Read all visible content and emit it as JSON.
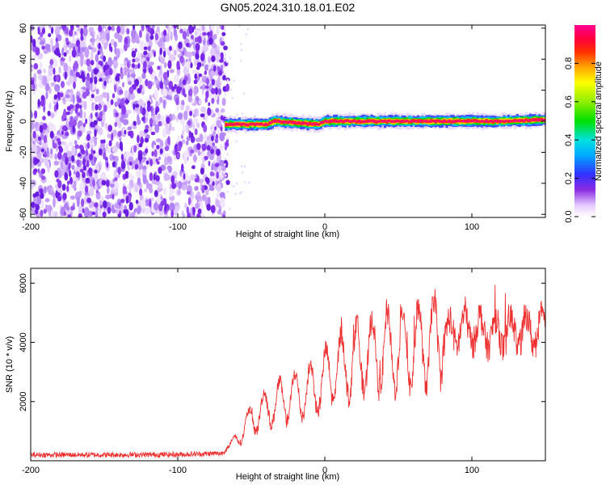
{
  "title": "GN05.2024.310.18.01.E02",
  "colors": {
    "snr_line": "#ee3030",
    "frame": "#000000",
    "speckle": "#7a28ea"
  },
  "chart_data": [
    {
      "type": "heatmap",
      "xlabel": "Height of straight line (km)",
      "ylabel": "Frequency (Hz)",
      "xlim": [
        -200,
        150
      ],
      "ylim": [
        -62,
        62
      ],
      "x_ticks": [
        -200,
        -100,
        0,
        100
      ],
      "x_tick_labels": [
        "-200",
        "-100",
        "0",
        "100"
      ],
      "y_ticks": [
        -60,
        -40,
        -20,
        0,
        20,
        40,
        60
      ],
      "y_tick_labels": [
        "-60",
        "-40",
        "-20",
        "0",
        "20",
        "40",
        "60"
      ],
      "colorbar": {
        "label": "Normalized spectral amplitude",
        "range": [
          0,
          1
        ],
        "ticks": [
          0.0,
          0.2,
          0.4,
          0.6,
          0.8
        ],
        "tick_labels": [
          "0.0",
          "0.2",
          "0.4",
          "0.6",
          "0.8"
        ],
        "colormap": "rainbow (white-violet-blue-cyan-green-yellow-red-magenta)"
      },
      "noise_region_x": [
        -200,
        -68
      ],
      "carrier_track": [
        {
          "x": -68,
          "y": -2
        },
        {
          "x": -50,
          "y": -2
        },
        {
          "x": -40,
          "y": -2
        },
        {
          "x": -35,
          "y": 0
        },
        {
          "x": -20,
          "y": -1
        },
        {
          "x": -5,
          "y": -2
        },
        {
          "x": 0,
          "y": 0
        },
        {
          "x": 20,
          "y": 0
        },
        {
          "x": 40,
          "y": 0
        },
        {
          "x": 60,
          "y": 0
        },
        {
          "x": 80,
          "y": 0
        },
        {
          "x": 100,
          "y": 0
        },
        {
          "x": 120,
          "y": 0
        },
        {
          "x": 150,
          "y": 1
        }
      ]
    },
    {
      "type": "line",
      "xlabel": "Height of straight line (km)",
      "ylabel": "SNR (10 * v/v)",
      "xlim": [
        -200,
        150
      ],
      "ylim": [
        0,
        6500
      ],
      "x_ticks": [
        -200,
        -100,
        0,
        100
      ],
      "x_tick_labels": [
        "-200",
        "-100",
        "0",
        "100"
      ],
      "y_ticks": [
        2000,
        4000,
        6000
      ],
      "y_tick_labels": [
        "2000",
        "4000",
        "6000"
      ],
      "series": [
        {
          "x": [
            -200,
            -150,
            -100,
            -70,
            -62,
            -55,
            -45,
            -35,
            -25,
            -15,
            -5,
            5,
            15,
            25,
            35,
            45,
            55,
            65,
            75,
            85,
            95,
            105,
            115,
            125,
            135,
            150
          ],
          "y": [
            200,
            200,
            210,
            250,
            600,
            1100,
            1600,
            1900,
            2100,
            2300,
            2500,
            3000,
            3300,
            3500,
            3600,
            3700,
            3800,
            3900,
            4100,
            4300,
            4500,
            4400,
            4300,
            4300,
            4400,
            4400
          ]
        }
      ]
    }
  ]
}
